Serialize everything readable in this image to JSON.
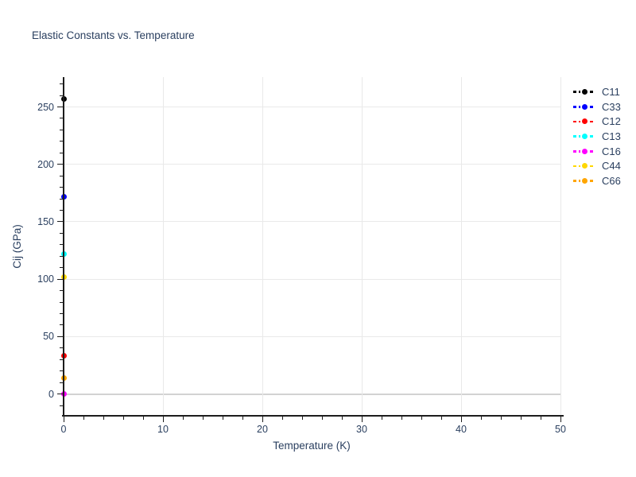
{
  "title": "Elastic Constants vs. Temperature",
  "axes": {
    "x": {
      "label": "Temperature (K)",
      "ticks": [
        0,
        10,
        20,
        30,
        40,
        50
      ],
      "minor_step": 2,
      "range": [
        0,
        50
      ]
    },
    "y": {
      "label": "Cij (GPa)",
      "ticks": [
        0,
        50,
        100,
        150,
        200,
        250
      ],
      "minor_step": 10,
      "range": [
        -19,
        276
      ]
    }
  },
  "legend": {
    "position": "right-outside-top",
    "entries": [
      "C11",
      "C33",
      "C12",
      "C13",
      "C16",
      "C44",
      "C66"
    ]
  },
  "chart_data": {
    "type": "scatter",
    "title": "Elastic Constants vs. Temperature",
    "xlabel": "Temperature (K)",
    "ylabel": "Cij (GPa)",
    "xlim": [
      0,
      50
    ],
    "ylim": [
      -19,
      276
    ],
    "grid": true,
    "legend_position": "right-outside-top",
    "marker_style": "dashed-line-with-circle-marker",
    "series": [
      {
        "name": "C11",
        "color": "#000000",
        "x": [
          0
        ],
        "y": [
          257
        ]
      },
      {
        "name": "C33",
        "color": "#0000ff",
        "x": [
          0
        ],
        "y": [
          172
        ]
      },
      {
        "name": "C12",
        "color": "#ff0000",
        "x": [
          0
        ],
        "y": [
          33
        ]
      },
      {
        "name": "C13",
        "color": "#00ffff",
        "x": [
          0
        ],
        "y": [
          122
        ]
      },
      {
        "name": "C16",
        "color": "#ff00ff",
        "x": [
          0
        ],
        "y": [
          0
        ]
      },
      {
        "name": "C44",
        "color": "#ffd700",
        "x": [
          0
        ],
        "y": [
          102
        ]
      },
      {
        "name": "C66",
        "color": "#ffa500",
        "x": [
          0
        ],
        "y": [
          14
        ]
      }
    ]
  },
  "colors": {
    "background": "#ffffff",
    "text": "#2a3f5f",
    "axis": "#1c1c1c",
    "grid": "#e9e9e9",
    "zero_line": "#d2d2d2"
  }
}
